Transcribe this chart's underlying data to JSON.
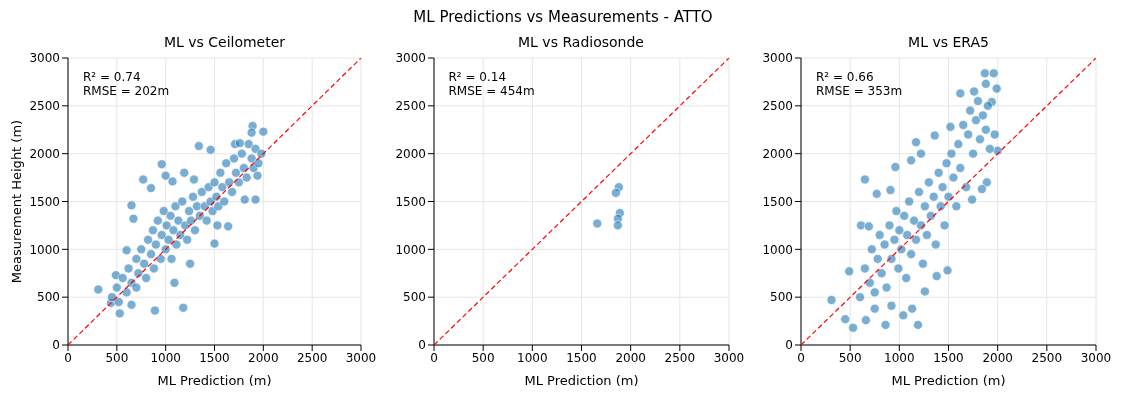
{
  "chart_data": [
    {
      "type": "other",
      "title": "ML Predictions vs Measurements - ATTO"
    },
    {
      "type": "scatter",
      "title": "ML vs Ceilometer",
      "xlabel": "ML Prediction (m)",
      "ylabel": "Measurement Height (m)",
      "xlim": [
        0,
        3000
      ],
      "ylim": [
        0,
        3000
      ],
      "xticks": [
        0,
        500,
        1000,
        1500,
        2000,
        2500,
        3000
      ],
      "yticks": [
        0,
        500,
        1000,
        1500,
        2000,
        2500,
        3000
      ],
      "grid": true,
      "annotations": [
        "R² = 0.74",
        "RMSE = 202m"
      ],
      "series": [
        {
          "type": "scatter",
          "marker": "circle",
          "color": "#1f77b4",
          "x": [
            310,
            530,
            890,
            1180,
            440,
            490,
            650,
            600,
            650,
            670,
            770,
            850,
            960,
            1000,
            1070,
            1190,
            1290,
            1340,
            1460,
            1500,
            1250,
            1090,
            1890,
            1880,
            2000,
            1940,
            1920,
            1640,
            1530,
            1810,
            1710,
            1760,
            450,
            500,
            520,
            560,
            600,
            620,
            650,
            700,
            700,
            720,
            750,
            780,
            800,
            820,
            850,
            870,
            880,
            900,
            920,
            950,
            960,
            980,
            1000,
            1010,
            1030,
            1050,
            1060,
            1080,
            1100,
            1110,
            1130,
            1150,
            1170,
            1200,
            1220,
            1240,
            1260,
            1280,
            1300,
            1320,
            1350,
            1370,
            1400,
            1420,
            1440,
            1460,
            1480,
            1500,
            1520,
            1540,
            1560,
            1580,
            1600,
            1620,
            1650,
            1680,
            1700,
            1720,
            1750,
            1780,
            1800,
            1830,
            1850,
            1880,
            1900,
            1920,
            1950,
            1980
          ],
          "values": [
            580,
            330,
            360,
            390,
            440,
            730,
            420,
            990,
            1460,
            1320,
            1730,
            1640,
            1890,
            1770,
            1710,
            1800,
            1730,
            2080,
            2040,
            1060,
            850,
            650,
            2290,
            2220,
            2230,
            1770,
            1520,
            1240,
            1250,
            1520,
            2100,
            2110,
            500,
            600,
            450,
            700,
            550,
            800,
            650,
            900,
            600,
            750,
            1000,
            850,
            700,
            1100,
            950,
            1200,
            800,
            1050,
            1300,
            900,
            1150,
            1400,
            1000,
            1250,
            1100,
            1350,
            900,
            1200,
            1450,
            1050,
            1300,
            1150,
            1500,
            1250,
            1100,
            1400,
            1300,
            1550,
            1200,
            1450,
            1350,
            1600,
            1450,
            1300,
            1650,
            1500,
            1400,
            1700,
            1550,
            1450,
            1800,
            1650,
            1500,
            1900,
            1700,
            1600,
            1950,
            1800,
            1700,
            2000,
            1850,
            1750,
            2100,
            1950,
            1850,
            2050,
            1900,
            2000
          ]
        },
        {
          "type": "line",
          "marker": "none",
          "color": "#ff0000",
          "line_style": "dashed",
          "x": [
            0,
            3000
          ],
          "values": [
            0,
            3000
          ]
        }
      ]
    },
    {
      "type": "scatter",
      "title": "ML vs Radiosonde",
      "xlabel": "ML Prediction (m)",
      "xlim": [
        0,
        3000
      ],
      "ylim": [
        0,
        3000
      ],
      "xticks": [
        0,
        500,
        1000,
        1500,
        2000,
        2500,
        3000
      ],
      "yticks": [
        0,
        500,
        1000,
        1500,
        2000,
        2500,
        3000
      ],
      "grid": true,
      "annotations": [
        "R² = 0.14",
        "RMSE = 454m"
      ],
      "series": [
        {
          "type": "scatter",
          "marker": "circle",
          "color": "#1f77b4",
          "x": [
            1880,
            1850,
            1890,
            1870,
            1870,
            1660
          ],
          "values": [
            1650,
            1590,
            1380,
            1320,
            1250,
            1270
          ]
        },
        {
          "type": "line",
          "marker": "none",
          "color": "#ff0000",
          "line_style": "dashed",
          "x": [
            0,
            3000
          ],
          "values": [
            0,
            3000
          ]
        }
      ]
    },
    {
      "type": "scatter",
      "title": "ML vs ERA5",
      "xlabel": "ML Prediction (m)",
      "xlim": [
        0,
        3000
      ],
      "ylim": [
        0,
        3000
      ],
      "xticks": [
        0,
        500,
        1000,
        1500,
        2000,
        2500,
        3000
      ],
      "yticks": [
        0,
        500,
        1000,
        1500,
        2000,
        2500,
        3000
      ],
      "grid": true,
      "annotations": [
        "R² = 0.66",
        "RMSE = 353m"
      ],
      "series": [
        {
          "type": "scatter",
          "marker": "circle",
          "color": "#1f77b4",
          "x": [
            310,
            450,
            530,
            660,
            860,
            1190,
            490,
            650,
            610,
            690,
            960,
            770,
            910,
            1170,
            1120,
            1220,
            1360,
            1520,
            1620,
            1760,
            1870,
            1960,
            1990,
            1880,
            1940,
            1970,
            2000,
            1890,
            1840,
            1740,
            1490,
            1380,
            1260,
            1040,
            1130,
            920,
            750,
            600,
            650,
            700,
            720,
            750,
            780,
            800,
            820,
            850,
            870,
            900,
            920,
            950,
            970,
            990,
            1000,
            1020,
            1050,
            1070,
            1080,
            1100,
            1120,
            1150,
            1170,
            1200,
            1220,
            1240,
            1260,
            1280,
            1300,
            1320,
            1350,
            1370,
            1400,
            1420,
            1440,
            1460,
            1480,
            1500,
            1530,
            1550,
            1580,
            1600,
            1620,
            1650,
            1680,
            1700,
            1720,
            1750,
            1780,
            1800,
            1820,
            1850,
            1880,
            1900,
            1920
          ],
          "values": [
            470,
            270,
            180,
            260,
            210,
            210,
            770,
            1730,
            1250,
            1240,
            1860,
            1580,
            1620,
            2120,
            1930,
            2000,
            2190,
            2280,
            2630,
            2650,
            2840,
            2840,
            2680,
            2730,
            2540,
            2200,
            2030,
            1700,
            1630,
            1520,
            780,
            720,
            560,
            310,
            380,
            410,
            380,
            500,
            800,
            650,
            1000,
            550,
            900,
            1150,
            750,
            1050,
            600,
            1250,
            900,
            1100,
            1400,
            800,
            1200,
            1000,
            1350,
            700,
            1150,
            1500,
            950,
            1300,
            1100,
            1600,
            1250,
            850,
            1450,
            1150,
            1700,
            1350,
            1550,
            1050,
            1800,
            1450,
            1650,
            1250,
            1900,
            1550,
            2000,
            1750,
            1450,
            2100,
            1850,
            2300,
            1650,
            2200,
            2450,
            2000,
            2350,
            2550,
            2150,
            2400,
            2250,
            2500,
            2050
          ]
        },
        {
          "type": "line",
          "marker": "none",
          "color": "#ff0000",
          "line_style": "dashed",
          "x": [
            0,
            3000
          ],
          "values": [
            0,
            3000
          ]
        }
      ]
    }
  ]
}
